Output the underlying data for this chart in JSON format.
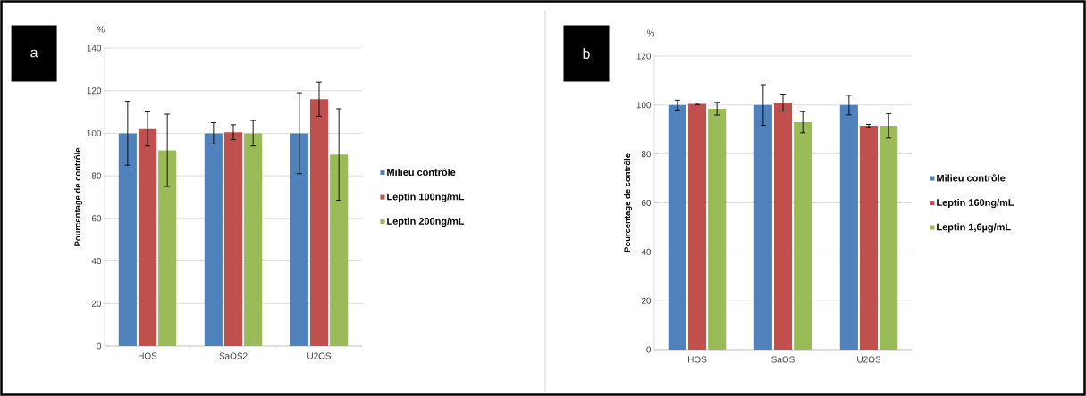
{
  "chart_data": [
    {
      "type": "bar",
      "ylabel": "Pourcentage de contrôle",
      "annotations": [
        "a",
        "%"
      ],
      "categories": [
        "HOS",
        "SaOS2",
        "U2OS"
      ],
      "ylim": [
        0,
        140
      ],
      "yticks": [
        0,
        20,
        40,
        60,
        80,
        100,
        120,
        140
      ],
      "grid": "y",
      "legend": "right",
      "series": [
        {
          "name": "Milieu contrôle",
          "color": "#4f81bd",
          "values": [
            100,
            100,
            100
          ],
          "errors": [
            15,
            5,
            19
          ]
        },
        {
          "name": "Leptin 100ng/mL",
          "color": "#c0504d",
          "values": [
            102,
            100.5,
            116
          ],
          "errors": [
            8,
            3.5,
            8
          ]
        },
        {
          "name": "Leptin 200ng/mL",
          "color": "#9bbb59",
          "values": [
            92,
            100,
            90
          ],
          "errors": [
            17,
            6,
            21.5
          ]
        }
      ]
    },
    {
      "type": "bar",
      "ylabel": "Pourcentage de contrôle",
      "annotations": [
        "b",
        "%"
      ],
      "categories": [
        "HOS",
        "SaOS",
        "U2OS"
      ],
      "ylim": [
        0,
        120
      ],
      "yticks": [
        0,
        20,
        40,
        60,
        80,
        100,
        120
      ],
      "grid": "y",
      "legend": "right",
      "series": [
        {
          "name": "Milieu contrôle",
          "color": "#4f81bd",
          "values": [
            100,
            100,
            100
          ],
          "errors": [
            2,
            8.3,
            4
          ]
        },
        {
          "name": "Leptin 160ng/mL",
          "color": "#c0504d",
          "values": [
            100.5,
            101,
            91.5
          ],
          "errors": [
            0.3,
            3.5,
            0.6
          ]
        },
        {
          "name": "Leptin 1,6µg/mL",
          "color": "#9bbb59",
          "values": [
            98.5,
            93,
            91.5
          ],
          "errors": [
            2.6,
            4.3,
            5
          ]
        }
      ]
    }
  ]
}
